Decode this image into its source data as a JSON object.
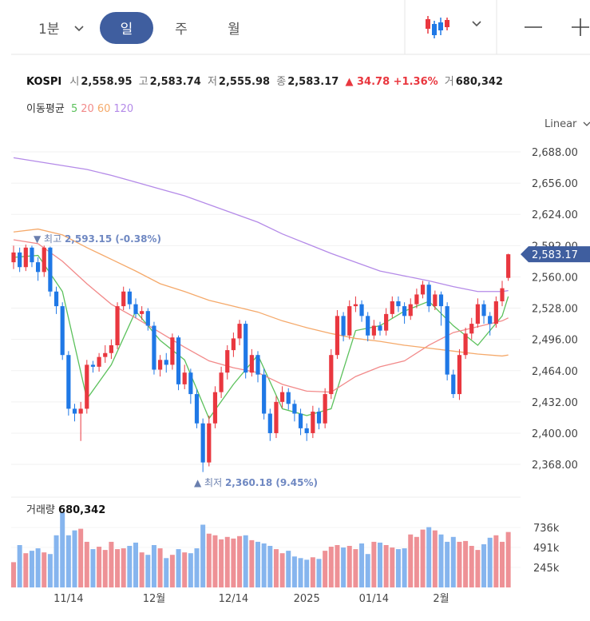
{
  "toolbar": {
    "intervals": [
      "1분",
      "일",
      "주",
      "월"
    ],
    "active": "일",
    "scale": "Linear"
  },
  "header": {
    "name": "KOSPI",
    "items": [
      {
        "label": "시",
        "value": "2,558.95"
      },
      {
        "label": "고",
        "value": "2,583.74"
      },
      {
        "label": "저",
        "value": "2,555.98"
      },
      {
        "label": "종",
        "value": "2,583.17"
      }
    ],
    "change": "▲ 34.78 +1.36%",
    "volume_label": "거",
    "volume_value": "680,342"
  },
  "chart_data": {
    "type": "candlestick",
    "categories": [
      null,
      null,
      null,
      null,
      null,
      null,
      null,
      null,
      null,
      "11/14",
      null,
      null,
      null,
      null,
      null,
      null,
      null,
      null,
      null,
      null,
      null,
      null,
      null,
      "12월",
      null,
      null,
      null,
      null,
      null,
      null,
      null,
      null,
      null,
      null,
      null,
      null,
      "12/14",
      null,
      null,
      null,
      null,
      null,
      null,
      null,
      null,
      null,
      null,
      null,
      "2025",
      null,
      null,
      null,
      null,
      null,
      null,
      null,
      null,
      null,
      null,
      "01/14",
      null,
      null,
      null,
      null,
      null,
      null,
      null,
      null,
      null,
      null,
      "2월",
      null,
      null,
      null,
      null,
      null,
      null,
      null,
      null,
      null,
      null,
      null
    ],
    "open": [
      2575,
      2585,
      2570,
      2590,
      2575,
      2565,
      2590,
      2545,
      2530,
      2480,
      2425,
      2420,
      2425,
      2470,
      2468,
      2478,
      2482,
      2490,
      2530,
      2545,
      2532,
      2522,
      2525,
      2510,
      2465,
      2475,
      2470,
      2498,
      2450,
      2462,
      2440,
      2410,
      2370,
      2410,
      2442,
      2462,
      2485,
      2497,
      2512,
      2462,
      2480,
      2460,
      2420,
      2400,
      2432,
      2442,
      2430,
      2420,
      2405,
      2400,
      2422,
      2410,
      2440,
      2480,
      2520,
      2500,
      2530,
      2532,
      2520,
      2500,
      2510,
      2505,
      2522,
      2535,
      2530,
      2520,
      2532,
      2542,
      2552,
      2530,
      2542,
      2530,
      2460,
      2440,
      2480,
      2502,
      2512,
      2532,
      2520,
      2512,
      2535,
      2558.95
    ],
    "high": [
      2592,
      2590,
      2593.15,
      2592,
      2580,
      2592,
      2591,
      2550,
      2534,
      2484,
      2430,
      2432,
      2475,
      2474,
      2482,
      2490,
      2496,
      2534,
      2550,
      2548,
      2538,
      2530,
      2528,
      2514,
      2480,
      2482,
      2502,
      2500,
      2470,
      2466,
      2445,
      2415,
      2418,
      2448,
      2468,
      2490,
      2503,
      2516,
      2515,
      2486,
      2484,
      2466,
      2425,
      2438,
      2448,
      2446,
      2434,
      2425,
      2410,
      2428,
      2426,
      2446,
      2486,
      2526,
      2524,
      2536,
      2540,
      2536,
      2524,
      2516,
      2514,
      2528,
      2540,
      2540,
      2534,
      2538,
      2548,
      2556,
      2555,
      2546,
      2545,
      2534,
      2465,
      2486,
      2508,
      2518,
      2538,
      2536,
      2524,
      2540,
      2556,
      2583.74
    ],
    "low": [
      2568,
      2565,
      2566,
      2570,
      2556,
      2560,
      2540,
      2522,
      2475,
      2418,
      2412,
      2392,
      2420,
      2462,
      2463,
      2472,
      2476,
      2486,
      2526,
      2527,
      2518,
      2516,
      2505,
      2460,
      2458,
      2462,
      2465,
      2444,
      2445,
      2430,
      2405,
      2360.18,
      2366,
      2405,
      2436,
      2455,
      2478,
      2490,
      2456,
      2458,
      2452,
      2414,
      2392,
      2395,
      2426,
      2424,
      2412,
      2398,
      2392,
      2395,
      2404,
      2405,
      2435,
      2476,
      2494,
      2496,
      2524,
      2514,
      2494,
      2496,
      2500,
      2500,
      2518,
      2524,
      2512,
      2516,
      2528,
      2538,
      2524,
      2526,
      2510,
      2454,
      2436,
      2434,
      2476,
      2496,
      2508,
      2512,
      2500,
      2508,
      2530,
      2555.98
    ],
    "close": [
      2585,
      2570,
      2590,
      2575,
      2565,
      2590,
      2545,
      2530,
      2480,
      2425,
      2420,
      2425,
      2470,
      2468,
      2478,
      2482,
      2490,
      2530,
      2545,
      2532,
      2522,
      2525,
      2510,
      2465,
      2475,
      2470,
      2498,
      2450,
      2462,
      2440,
      2410,
      2370,
      2410,
      2442,
      2462,
      2485,
      2497,
      2512,
      2462,
      2480,
      2460,
      2420,
      2400,
      2432,
      2442,
      2430,
      2420,
      2405,
      2400,
      2422,
      2410,
      2440,
      2480,
      2520,
      2500,
      2530,
      2532,
      2520,
      2500,
      2510,
      2505,
      2522,
      2535,
      2530,
      2520,
      2532,
      2542,
      2552,
      2530,
      2542,
      2530,
      2460,
      2440,
      2480,
      2502,
      2512,
      2532,
      2520,
      2512,
      2535,
      2548.39,
      2583.17
    ],
    "up_color": "#e9373f",
    "down_color": "#1f78e6",
    "ylim": [
      2352.5,
      2704.4
    ],
    "yticks": [
      {
        "value": 2368,
        "label": "2,368.00"
      },
      {
        "value": 2400,
        "label": "2,400.00"
      },
      {
        "value": 2432,
        "label": "2,432.00"
      },
      {
        "value": 2464,
        "label": "2,464.00"
      },
      {
        "value": 2496,
        "label": "2,496.00"
      },
      {
        "value": 2528,
        "label": "2,528.00"
      },
      {
        "value": 2560,
        "label": "2,560.00"
      },
      {
        "value": 2592,
        "label": "2,592.00"
      },
      {
        "value": 2624,
        "label": "2,624.00"
      },
      {
        "value": 2656,
        "label": "2,656.00"
      },
      {
        "value": 2688,
        "label": "2,688.00"
      }
    ],
    "grid": true,
    "current_price_label": "2,583.17",
    "annotations": [
      {
        "label": "▼ 최고",
        "text": "2,593.15 (-0.38%)"
      },
      {
        "label": "▲ 최저",
        "text": "2,360.18 (9.45%)"
      }
    ],
    "moving_averages": {
      "label": "이동평균",
      "x": [
        0,
        4,
        8,
        12,
        16,
        20,
        24,
        28,
        32,
        36,
        40,
        44,
        48,
        52,
        56,
        60,
        64,
        68,
        72,
        76,
        80,
        81
      ],
      "series": [
        {
          "name": "5",
          "color": "#5cc15c",
          "values": [
            2580,
            2582,
            2545,
            2435,
            2470,
            2525,
            2495,
            2475,
            2415,
            2450,
            2480,
            2425,
            2418,
            2425,
            2505,
            2510,
            2525,
            2535,
            2510,
            2490,
            2520,
            2540
          ]
        },
        {
          "name": "20",
          "color": "#f28a8a",
          "values": [
            2598,
            2594,
            2576,
            2553,
            2532,
            2518,
            2503,
            2488,
            2474,
            2467,
            2462,
            2450,
            2443,
            2442,
            2458,
            2468,
            2474,
            2490,
            2503,
            2509,
            2515,
            2518
          ]
        },
        {
          "name": "60",
          "color": "#f5a96a",
          "values": [
            2606,
            2609,
            2603,
            2590,
            2578,
            2566,
            2553,
            2545,
            2536,
            2530,
            2524,
            2515,
            2508,
            2502,
            2497,
            2494,
            2490,
            2487,
            2484,
            2481,
            2479,
            2480
          ]
        },
        {
          "name": "120",
          "color": "#b48ae8",
          "values": [
            2682,
            2678,
            2674,
            2670,
            2664,
            2657,
            2650,
            2643,
            2634,
            2625,
            2616,
            2604,
            2594,
            2584,
            2575,
            2566,
            2561,
            2556,
            2550,
            2545,
            2545,
            2546
          ]
        }
      ]
    },
    "volume": {
      "title": "거래량",
      "value_label": "680,342",
      "up_color": "#ee9196",
      "down_color": "#86b5ee",
      "values": [
        310000,
        520000,
        420000,
        450000,
        480000,
        430000,
        410000,
        640000,
        920000,
        640000,
        700000,
        720000,
        560000,
        470000,
        500000,
        460000,
        560000,
        470000,
        480000,
        510000,
        550000,
        430000,
        400000,
        520000,
        480000,
        360000,
        400000,
        470000,
        430000,
        420000,
        480000,
        770000,
        660000,
        640000,
        590000,
        620000,
        600000,
        630000,
        640000,
        580000,
        560000,
        540000,
        510000,
        470000,
        420000,
        450000,
        380000,
        360000,
        340000,
        370000,
        350000,
        450000,
        500000,
        520000,
        490000,
        510000,
        470000,
        540000,
        410000,
        560000,
        550000,
        520000,
        490000,
        470000,
        480000,
        650000,
        620000,
        710000,
        740000,
        700000,
        650000,
        560000,
        620000,
        560000,
        570000,
        510000,
        460000,
        530000,
        610000,
        640000,
        560000,
        680342
      ],
      "ylim": [
        0,
        1030000
      ],
      "yticks": [
        {
          "value": 245000,
          "label": "245k"
        },
        {
          "value": 491000,
          "label": "491k"
        },
        {
          "value": 736000,
          "label": "736k"
        }
      ]
    }
  }
}
